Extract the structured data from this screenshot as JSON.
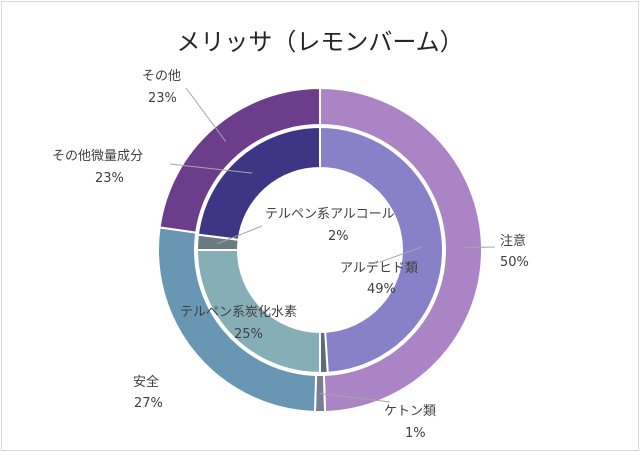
{
  "chart_data": {
    "type": "pie",
    "title": "メリッサ（レモンバーム）",
    "rings": [
      {
        "name": "outer",
        "slices": [
          {
            "label": "注意",
            "value": 50,
            "display": "50%",
            "color": "#ab84c6"
          },
          {
            "label": "ケトン類",
            "value": 1,
            "display": "1%",
            "color": "#7d7d92"
          },
          {
            "label": "安全",
            "value": 27,
            "display": "27%",
            "color": "#6996b2"
          },
          {
            "label": "その他",
            "value": 23,
            "display": "23%",
            "color": "#6b3d8a"
          }
        ]
      },
      {
        "name": "inner",
        "slices": [
          {
            "label": "アルデヒド類",
            "value": 49,
            "display": "49%",
            "color": "#8881c8"
          },
          {
            "label": "ケトン類",
            "value": 1,
            "display": "1%",
            "color": "#5d6a78"
          },
          {
            "label": "テルペン系炭化水素",
            "value": 25,
            "display": "25%",
            "color": "#86aeb6"
          },
          {
            "label": "テルペン系アルコール",
            "value": 2,
            "display": "2%",
            "color": "#697a80"
          },
          {
            "label": "その他微量成分",
            "value": 23,
            "display": "23%",
            "color": "#3e3585"
          }
        ]
      }
    ],
    "legend": "none"
  }
}
